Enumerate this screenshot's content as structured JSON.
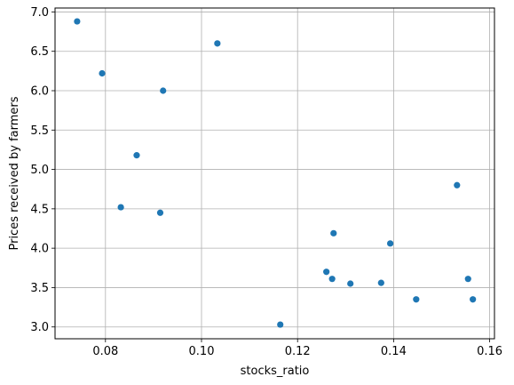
{
  "chart_data": {
    "type": "scatter",
    "title": "",
    "xlabel": "stocks_ratio",
    "ylabel": "Prices received by farmers",
    "xlim": [
      0.0695,
      0.161
    ],
    "ylim": [
      2.85,
      7.05
    ],
    "x_ticks": [
      0.08,
      0.1,
      0.12,
      0.14,
      0.16
    ],
    "x_tick_labels": [
      "0.08",
      "0.10",
      "0.12",
      "0.14",
      "0.16"
    ],
    "y_ticks": [
      3.0,
      3.5,
      4.0,
      4.5,
      5.0,
      5.5,
      6.0,
      6.5,
      7.0
    ],
    "y_tick_labels": [
      "3.0",
      "3.5",
      "4.0",
      "4.5",
      "5.0",
      "5.5",
      "6.0",
      "6.5",
      "7.0"
    ],
    "grid": true,
    "legend": "none",
    "marker_color": "#1f77b4",
    "points": [
      {
        "x": 0.0741,
        "y": 6.88
      },
      {
        "x": 0.0793,
        "y": 6.22
      },
      {
        "x": 0.0832,
        "y": 4.52
      },
      {
        "x": 0.0865,
        "y": 5.18
      },
      {
        "x": 0.0914,
        "y": 4.45
      },
      {
        "x": 0.092,
        "y": 6.0
      },
      {
        "x": 0.1033,
        "y": 6.6
      },
      {
        "x": 0.1164,
        "y": 3.03
      },
      {
        "x": 0.126,
        "y": 3.7
      },
      {
        "x": 0.1272,
        "y": 3.61
      },
      {
        "x": 0.1275,
        "y": 4.19
      },
      {
        "x": 0.131,
        "y": 3.55
      },
      {
        "x": 0.1374,
        "y": 3.56
      },
      {
        "x": 0.1393,
        "y": 4.06
      },
      {
        "x": 0.1447,
        "y": 3.35
      },
      {
        "x": 0.1532,
        "y": 4.8
      },
      {
        "x": 0.1555,
        "y": 3.61
      },
      {
        "x": 0.1565,
        "y": 3.35
      }
    ]
  }
}
